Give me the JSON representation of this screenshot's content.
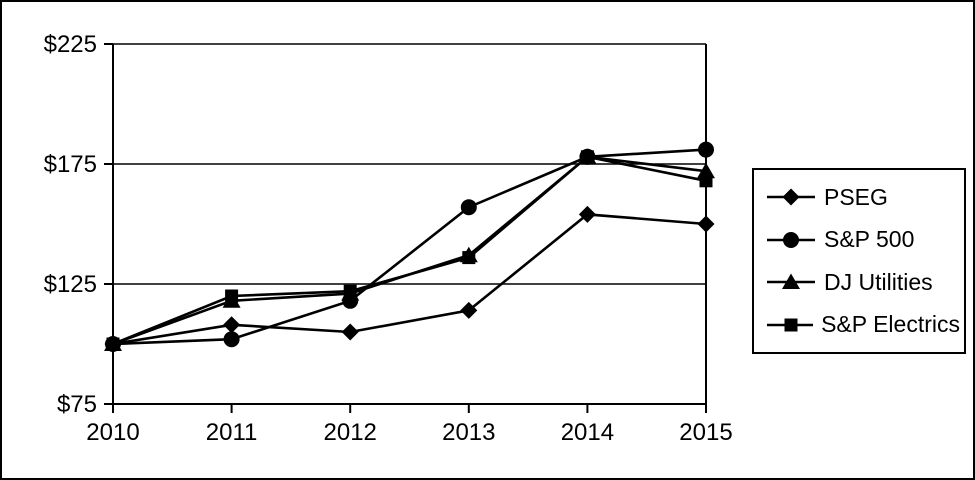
{
  "figure": {
    "background_color": "#ffffff",
    "border_color": "#000000",
    "series_color": "#000000"
  },
  "chart_data": {
    "type": "line",
    "title": "",
    "xlabel": "",
    "ylabel": "",
    "x": [
      2010,
      2011,
      2012,
      2013,
      2014,
      2015
    ],
    "x_tick_labels": [
      "2010",
      "2011",
      "2012",
      "2013",
      "2014",
      "2015"
    ],
    "y_ticks": [
      75,
      125,
      175,
      225
    ],
    "y_tick_labels": [
      "$75",
      "$125",
      "$175",
      "$225"
    ],
    "ylim": [
      75,
      225
    ],
    "grid": "horizontal",
    "legend_position": "right",
    "series": [
      {
        "name": "PSEG",
        "marker": "diamond",
        "color": "#000000",
        "values": [
          100,
          108,
          105,
          114,
          154,
          150
        ]
      },
      {
        "name": "S&P 500",
        "marker": "circle",
        "color": "#000000",
        "values": [
          100,
          102,
          118,
          157,
          178,
          181
        ]
      },
      {
        "name": "DJ Utilities",
        "marker": "triangle",
        "color": "#000000",
        "values": [
          100,
          118,
          121,
          137,
          178,
          172
        ]
      },
      {
        "name": "S&P Electrics",
        "marker": "square",
        "color": "#000000",
        "values": [
          100,
          120,
          122,
          136,
          178,
          168
        ]
      }
    ]
  }
}
